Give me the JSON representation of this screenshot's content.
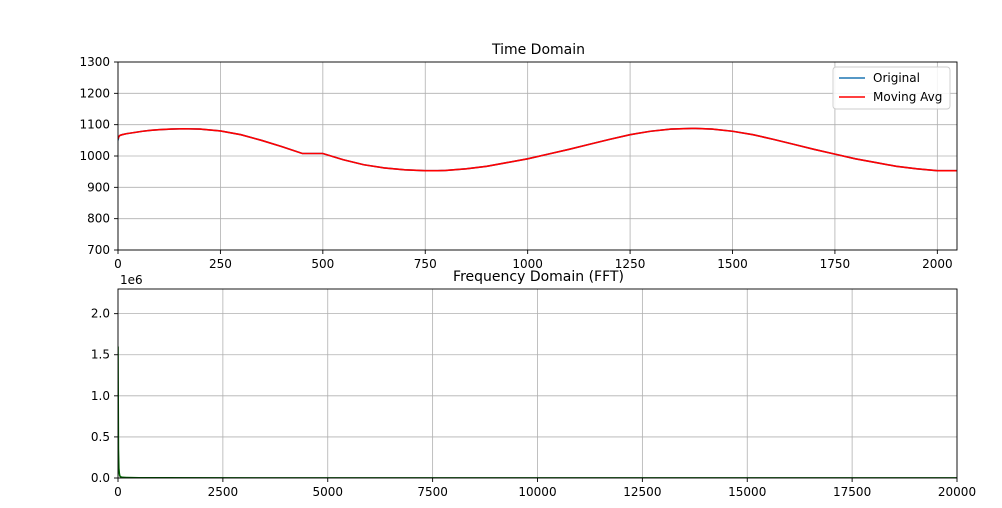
{
  "chart_data": [
    {
      "type": "line",
      "title": "Time Domain",
      "xlabel": "",
      "ylabel": "",
      "xlim": [
        0,
        2048
      ],
      "ylim": [
        700,
        1300
      ],
      "xticks": [
        0,
        250,
        500,
        750,
        1000,
        1250,
        1500,
        1750,
        2000
      ],
      "yticks": [
        700,
        800,
        900,
        1000,
        1100,
        1200,
        1300
      ],
      "grid": true,
      "legend_position": "upper right",
      "series": [
        {
          "name": "Original",
          "color": "#1f77b4",
          "x": [
            0,
            2,
            5,
            10,
            20,
            40,
            60,
            80,
            100,
            130,
            160,
            200,
            250,
            300,
            350,
            400,
            450,
            500,
            550,
            600,
            650,
            700,
            750,
            780,
            800,
            850,
            900,
            950,
            1000,
            1050,
            1100,
            1150,
            1200,
            1250,
            1300,
            1350,
            1400,
            1410,
            1450,
            1500,
            1550,
            1600,
            1650,
            1700,
            1750,
            1800,
            1850,
            1900,
            1950,
            2000,
            2047
          ],
          "y": [
            1050,
            1062,
            1066,
            1068,
            1071,
            1075,
            1079,
            1082,
            1084,
            1086,
            1087,
            1086,
            1080,
            1068,
            1050,
            1030,
            1008,
            1008,
            988,
            972,
            962,
            956,
            953,
            953,
            954,
            959,
            967,
            979,
            991,
            1006,
            1021,
            1037,
            1053,
            1068,
            1079,
            1086,
            1088,
            1088,
            1086,
            1079,
            1068,
            1053,
            1037,
            1021,
            1006,
            991,
            979,
            967,
            959,
            953,
            953
          ]
        },
        {
          "name": "Moving Avg",
          "color": "#ff0000",
          "x": [
            0,
            2,
            5,
            10,
            20,
            40,
            60,
            80,
            100,
            130,
            160,
            200,
            250,
            300,
            350,
            400,
            450,
            500,
            550,
            600,
            650,
            700,
            750,
            780,
            800,
            850,
            900,
            950,
            1000,
            1050,
            1100,
            1150,
            1200,
            1250,
            1300,
            1350,
            1400,
            1410,
            1450,
            1500,
            1550,
            1600,
            1650,
            1700,
            1750,
            1800,
            1850,
            1900,
            1950,
            2000,
            2047
          ],
          "y": [
            1055,
            1062,
            1066,
            1068,
            1071,
            1075,
            1079,
            1082,
            1084,
            1086,
            1087,
            1086,
            1080,
            1068,
            1050,
            1030,
            1008,
            1008,
            988,
            972,
            962,
            956,
            953,
            953,
            954,
            959,
            967,
            979,
            991,
            1006,
            1021,
            1037,
            1053,
            1068,
            1079,
            1086,
            1088,
            1088,
            1086,
            1079,
            1068,
            1053,
            1037,
            1021,
            1006,
            991,
            979,
            967,
            959,
            953,
            953
          ]
        }
      ]
    },
    {
      "type": "line",
      "title": "Frequency Domain (FFT)",
      "xlabel": "",
      "ylabel": "",
      "scale_label": "1e6",
      "xlim": [
        0,
        20000
      ],
      "ylim": [
        0,
        2.3
      ],
      "xticks": [
        0,
        2500,
        5000,
        7500,
        10000,
        12500,
        15000,
        17500,
        20000
      ],
      "yticks": [
        0.0,
        0.5,
        1.0,
        1.5,
        2.0
      ],
      "ytick_labels": [
        "0.0",
        "0.5",
        "1.0",
        "1.5",
        "2.0"
      ],
      "grid": true,
      "series": [
        {
          "color": "#006400",
          "x": [
            0,
            5,
            10,
            20,
            30,
            40,
            60,
            100,
            200,
            500,
            1000,
            5000,
            10000,
            15000,
            20000
          ],
          "y": [
            1.6,
            0.9,
            0.35,
            0.12,
            0.06,
            0.03,
            0.015,
            0.008,
            0.005,
            0.003,
            0.002,
            0.001,
            0.001,
            0.001,
            0.001
          ]
        }
      ]
    }
  ]
}
